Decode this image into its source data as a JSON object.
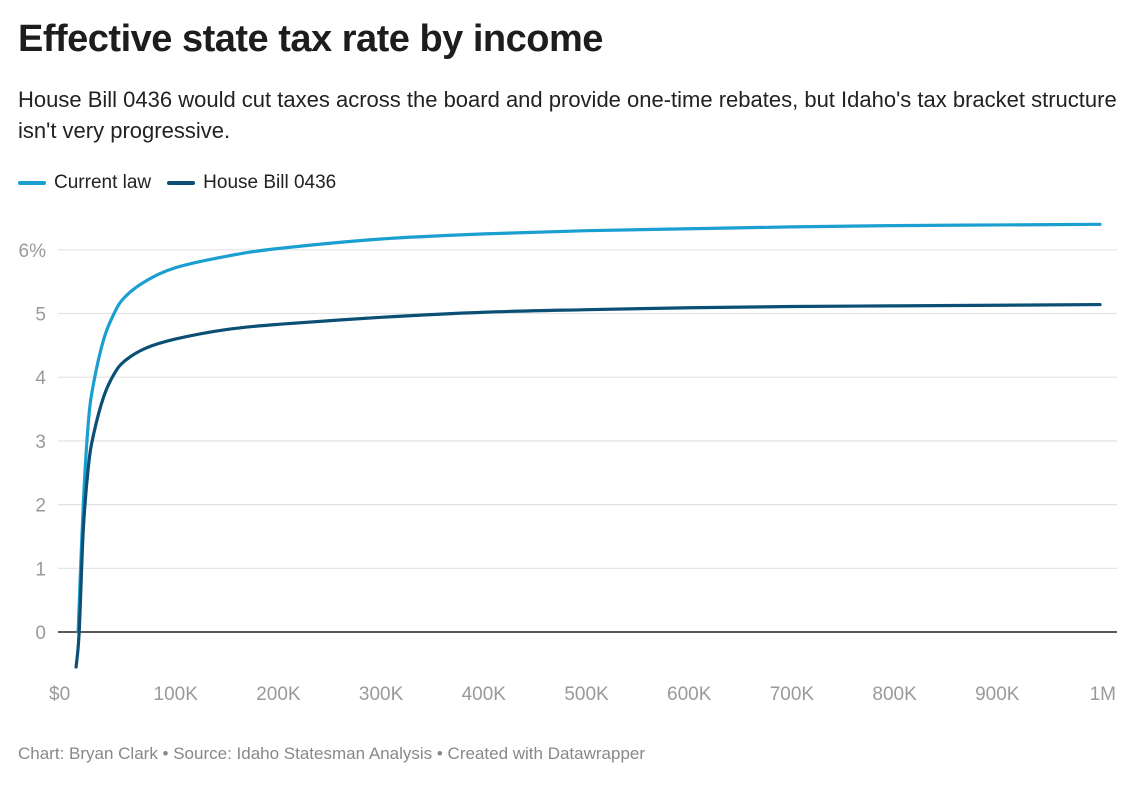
{
  "title": "Effective state tax rate by income",
  "subtitle": "House Bill 0436 would cut taxes across the board and provide one-time rebates, but Idaho's tax bracket structure isn't very progressive.",
  "footer": "Chart: Bryan Clark • Source: Idaho Statesman Analysis • Created with Datawrapper",
  "chart_data": {
    "type": "line",
    "xlim": [
      0,
      1000000
    ],
    "ylim": [
      -0.6,
      6.4
    ],
    "x_ticks": [
      0,
      100000,
      200000,
      300000,
      400000,
      500000,
      600000,
      700000,
      800000,
      900000,
      1000000
    ],
    "x_tick_labels": [
      "$0",
      "100K",
      "200K",
      "300K",
      "400K",
      "500K",
      "600K",
      "700K",
      "800K",
      "900K",
      "1M"
    ],
    "y_ticks": [
      0,
      1,
      2,
      3,
      4,
      5,
      6
    ],
    "y_tick_labels": [
      "0",
      "1",
      "2",
      "3",
      "4",
      "5",
      "6%"
    ],
    "grid": true,
    "legend": "top-left",
    "series": [
      {
        "name": "Current law",
        "color": "#1a9fd0",
        "points": [
          [
            5000,
            0
          ],
          [
            10000,
            2.0
          ],
          [
            15000,
            3.3
          ],
          [
            20000,
            3.9
          ],
          [
            30000,
            4.6
          ],
          [
            40000,
            5.0
          ],
          [
            50000,
            5.25
          ],
          [
            70000,
            5.5
          ],
          [
            100000,
            5.72
          ],
          [
            150000,
            5.9
          ],
          [
            200000,
            6.02
          ],
          [
            300000,
            6.17
          ],
          [
            400000,
            6.25
          ],
          [
            500000,
            6.3
          ],
          [
            600000,
            6.33
          ],
          [
            700000,
            6.36
          ],
          [
            800000,
            6.38
          ],
          [
            900000,
            6.39
          ],
          [
            1000000,
            6.4
          ]
        ]
      },
      {
        "name": "House Bill 0436",
        "color": "#0b4f75",
        "points": [
          [
            3000,
            -0.55
          ],
          [
            6000,
            0
          ],
          [
            10000,
            1.6
          ],
          [
            15000,
            2.6
          ],
          [
            20000,
            3.1
          ],
          [
            30000,
            3.7
          ],
          [
            40000,
            4.05
          ],
          [
            50000,
            4.25
          ],
          [
            70000,
            4.45
          ],
          [
            100000,
            4.6
          ],
          [
            150000,
            4.75
          ],
          [
            200000,
            4.83
          ],
          [
            300000,
            4.94
          ],
          [
            400000,
            5.02
          ],
          [
            500000,
            5.06
          ],
          [
            600000,
            5.09
          ],
          [
            700000,
            5.11
          ],
          [
            800000,
            5.12
          ],
          [
            900000,
            5.13
          ],
          [
            1000000,
            5.14
          ]
        ]
      }
    ]
  }
}
